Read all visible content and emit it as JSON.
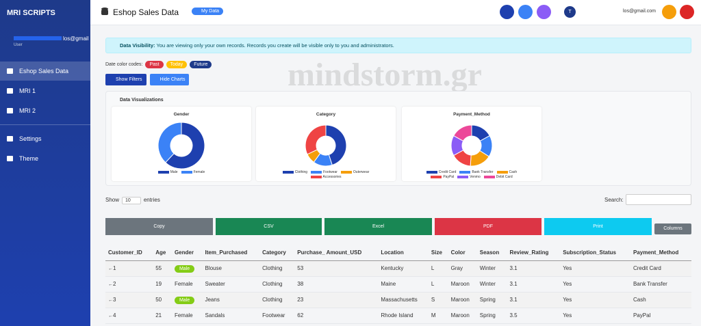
{
  "sidebar": {
    "brand": "MRI SCRIPTS",
    "user_email": "los@gmail.com",
    "user_role": "User",
    "nav": [
      "Eshop Sales Data",
      "MRI 1",
      "MRI 2",
      "Settings",
      "Theme"
    ]
  },
  "header": {
    "title": "Eshop Sales Data",
    "badge": "My Data",
    "avatar": "T",
    "email": "los@gmail.com"
  },
  "alert": {
    "label": "Data Visibility:",
    "text": "You are viewing only your own records. Records you create will be visible only to you and administrators."
  },
  "date_codes": {
    "label": "Date color codes:",
    "items": [
      {
        "text": "Past",
        "color": "#dc3545"
      },
      {
        "text": "Today",
        "color": "#ffc107"
      },
      {
        "text": "Future",
        "color": "#1e3a8a"
      }
    ]
  },
  "filter_buttons": [
    "Show Filters",
    "Hide Charts"
  ],
  "watermark": "mindstorm.gr",
  "charts_panel": {
    "title": "Data Visualizations",
    "charts": [
      {
        "type": "pie",
        "title": "Gender",
        "categories": [
          "Male",
          "Female"
        ],
        "values": [
          62,
          38
        ],
        "colors": [
          "#1e40af",
          "#3b82f6"
        ]
      },
      {
        "type": "pie",
        "title": "Category",
        "categories": [
          "Clothing",
          "Footwear",
          "Outerwear",
          "Accessories"
        ],
        "values": [
          45,
          15,
          8,
          32
        ],
        "colors": [
          "#1e40af",
          "#3b82f6",
          "#f59e0b",
          "#ef4444"
        ]
      },
      {
        "type": "pie",
        "title": "Payment_Method",
        "categories": [
          "Credit Card",
          "Bank Transfer",
          "Cash",
          "PayPal",
          "Venmo",
          "Debit Card"
        ],
        "values": [
          17,
          17,
          17,
          16,
          16,
          17
        ],
        "colors": [
          "#1e40af",
          "#3b82f6",
          "#f59e0b",
          "#ef4444",
          "#8b5cf6",
          "#ec4899"
        ]
      }
    ]
  },
  "table_controls": {
    "show": "Show",
    "length": "10",
    "entries": "entries",
    "search": "Search:"
  },
  "export_buttons": [
    {
      "text": "Copy",
      "color": "#6c757d"
    },
    {
      "text": "CSV",
      "color": "#198754"
    },
    {
      "text": "Excel",
      "color": "#198754"
    },
    {
      "text": "PDF",
      "color": "#dc3545"
    },
    {
      "text": "Print",
      "color": "#0dcaf0"
    },
    {
      "text": "Columns",
      "color": "#6c757d"
    }
  ],
  "table": {
    "columns": [
      "Customer_ID",
      "Age",
      "Gender",
      "Item_Purchased",
      "Category",
      "Purchase_ Amount_USD",
      "Location",
      "Size",
      "Color",
      "Season",
      "Review_Rating",
      "Subscription_Status",
      "Payment_Method"
    ],
    "rows": [
      [
        "1",
        "55",
        {
          "badge": "Male"
        },
        "Blouse",
        "Clothing",
        "53",
        "Kentucky",
        "L",
        "Gray",
        "Winter",
        "3.1",
        "Yes",
        "Credit Card"
      ],
      [
        "2",
        "19",
        "Female",
        "Sweater",
        "Clothing",
        "38",
        "Maine",
        "L",
        "Maroon",
        "Winter",
        "3.1",
        "Yes",
        "Bank Transfer"
      ],
      [
        "3",
        "50",
        {
          "badge": "Male"
        },
        "Jeans",
        "Clothing",
        "23",
        "Massachusetts",
        "S",
        "Maroon",
        "Spring",
        "3.1",
        "Yes",
        "Cash"
      ],
      [
        "4",
        "21",
        "Female",
        "Sandals",
        "Footwear",
        "62",
        "Rhode Island",
        "M",
        "Maroon",
        "Spring",
        "3.5",
        "Yes",
        "PayPal"
      ]
    ]
  }
}
